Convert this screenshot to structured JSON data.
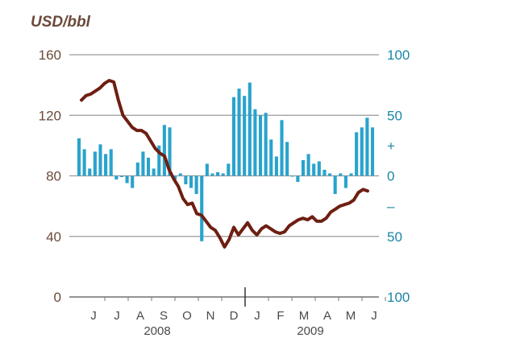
{
  "chart_data": {
    "type": "bar+line",
    "title": "",
    "left_axis": {
      "label": "USD/bbl",
      "ylim": [
        0,
        160
      ],
      "ticks": [
        0,
        40,
        80,
        120,
        160
      ],
      "tick_labels": [
        "0",
        "40",
        "80",
        "120",
        "160"
      ]
    },
    "right_axis": {
      "ylim": [
        -100,
        100
      ],
      "ticks": [
        100,
        50,
        25,
        0,
        -25,
        -50,
        -100
      ],
      "tick_labels": [
        "100",
        "50",
        "+",
        "0",
        "–",
        "50",
        "100"
      ]
    },
    "x_axis": {
      "months": [
        "J",
        "J",
        "A",
        "S",
        "O",
        "N",
        "D",
        "J",
        "F",
        "M",
        "A",
        "M",
        "J"
      ],
      "years": [
        "2008",
        "2009"
      ]
    },
    "grid": true,
    "series": [
      {
        "type": "line",
        "axis": "left",
        "color": "#6e1f12",
        "values": [
          130,
          133,
          134,
          136,
          138,
          141,
          143,
          142,
          130,
          120,
          116,
          112,
          110,
          110,
          108,
          103,
          98,
          95,
          93,
          84,
          78,
          73,
          65,
          61,
          62,
          55,
          54,
          50,
          46,
          44,
          39,
          33,
          38,
          46,
          41,
          45,
          49,
          44,
          41,
          45,
          47,
          45,
          43,
          42,
          43,
          47,
          49,
          51,
          52,
          51,
          53,
          50,
          50,
          52,
          56,
          58,
          60,
          61,
          62,
          64,
          69,
          71,
          70
        ]
      },
      {
        "type": "bar",
        "axis": "right",
        "color": "#29a3cc",
        "values": [
          31,
          22,
          6,
          20,
          26,
          18,
          22,
          -3,
          -1,
          -6,
          -10,
          11,
          20,
          15,
          6,
          25,
          42,
          40,
          -3,
          2,
          -7,
          -10,
          -15,
          -54,
          10,
          2,
          3,
          2,
          10,
          65,
          72,
          66,
          77,
          55,
          50,
          52,
          30,
          16,
          46,
          28,
          0,
          -5,
          13,
          18,
          10,
          12,
          5,
          2,
          -15,
          2,
          -10,
          2,
          36,
          40,
          48,
          40
        ]
      }
    ]
  }
}
